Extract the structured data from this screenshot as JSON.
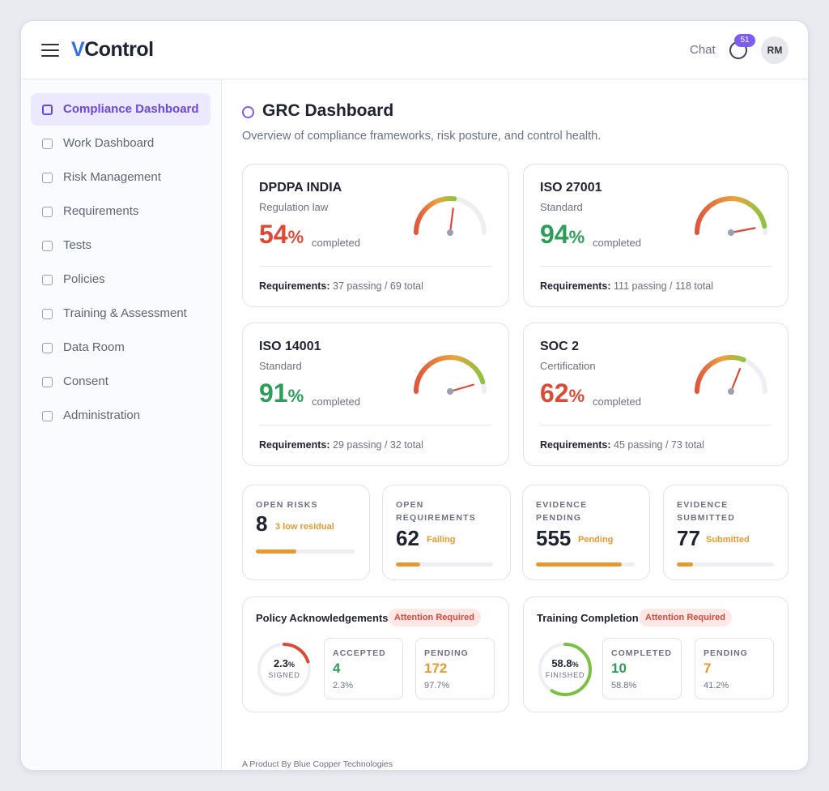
{
  "header": {
    "brand_v": "V",
    "brand_rest": "Control",
    "chat_label": "Chat",
    "notification_count": "51",
    "avatar_initials": "RM"
  },
  "sidebar": {
    "items": [
      {
        "label": "Compliance Dashboard",
        "active": true
      },
      {
        "label": "Work Dashboard"
      },
      {
        "label": "Risk Management"
      },
      {
        "label": "Requirements"
      },
      {
        "label": "Tests"
      },
      {
        "label": "Policies"
      },
      {
        "label": "Training & Assessment"
      },
      {
        "label": "Data Room"
      },
      {
        "label": "Consent"
      },
      {
        "label": "Administration"
      }
    ]
  },
  "page": {
    "title": "GRC Dashboard",
    "subtitle": "Overview of compliance frameworks, risk posture, and control health."
  },
  "frameworks": [
    {
      "name": "DPDPA INDIA",
      "type": "Regulation law",
      "percent": "54",
      "percent_value": 54,
      "completed_label": "completed",
      "req_label": "Requirements:",
      "req_text": "37 passing / 69 total",
      "color": "#dc4a36"
    },
    {
      "name": "ISO 27001",
      "type": "Standard",
      "percent": "94",
      "percent_value": 94,
      "completed_label": "completed",
      "req_label": "Requirements:",
      "req_text": "111 passing / 118 total",
      "color": "#2c9e5a"
    },
    {
      "name": "ISO 14001",
      "type": "Standard",
      "percent": "91",
      "percent_value": 91,
      "completed_label": "completed",
      "req_label": "Requirements:",
      "req_text": "29 passing / 32 total",
      "color": "#2c9e5a"
    },
    {
      "name": "SOC 2",
      "type": "Certification",
      "percent": "62",
      "percent_value": 62,
      "completed_label": "completed",
      "req_label": "Requirements:",
      "req_text": "45 passing / 73 total",
      "color": "#dc4a36"
    }
  ],
  "percent_sign": "%",
  "metrics": [
    {
      "label": "OPEN RISKS",
      "value": "8",
      "sub": "3 low residual",
      "progress": 0.41
    },
    {
      "label": "OPEN REQUIREMENTS",
      "value": "62",
      "sub": "Failing",
      "progress": 0.25
    },
    {
      "label": "EVIDENCE PENDING",
      "value": "555",
      "sub": "Pending",
      "progress": 0.87
    },
    {
      "label": "EVIDENCE SUBMITTED",
      "value": "77",
      "sub": "Submitted",
      "progress": 0.17
    }
  ],
  "policy": {
    "title": "Policy Acknowledgements",
    "badge": "Attention Required",
    "ring_pct": "2.3",
    "ring_value": 0.023,
    "ring_label": "SIGNED",
    "ring_color": "#dc4a36",
    "stats": [
      {
        "label": "ACCEPTED",
        "value": "4",
        "pct": "2.3%",
        "color": "#2c9e5a"
      },
      {
        "label": "PENDING",
        "value": "172",
        "pct": "97.7%",
        "color": "#e8992e"
      }
    ]
  },
  "training": {
    "title": "Training Completion",
    "badge": "Attention Required",
    "ring_pct": "58.8",
    "ring_value": 0.588,
    "ring_label": "FINISHED",
    "ring_color": "#7cc043",
    "stats": [
      {
        "label": "COMPLETED",
        "value": "10",
        "pct": "58.8%",
        "color": "#2c9e5a"
      },
      {
        "label": "PENDING",
        "value": "7",
        "pct": "41.2%",
        "color": "#e8992e"
      }
    ]
  },
  "footer": "A Product By Blue Copper Technologies"
}
